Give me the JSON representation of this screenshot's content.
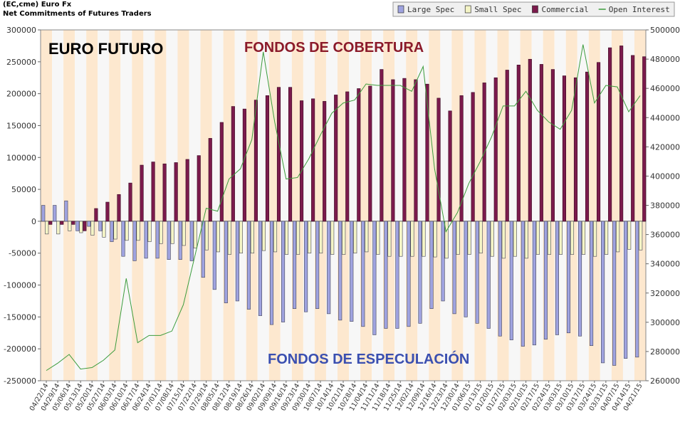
{
  "chart_data": {
    "type": "bar",
    "title": "(EC,cme) Euro Fx",
    "subtitle": "Net Commitments of Futures Traders",
    "annotations": [
      "EURO FUTURO",
      "FONDOS DE COBERTURA",
      "FONDOS DE ESPECULACIÓN"
    ],
    "categories": [
      "04/22/14",
      "04/29/14",
      "05/06/14",
      "05/13/14",
      "05/20/14",
      "05/27/14",
      "06/03/14",
      "06/10/14",
      "06/17/14",
      "06/24/14",
      "07/01/14",
      "07/08/14",
      "07/15/14",
      "07/22/14",
      "07/29/14",
      "08/05/14",
      "08/12/14",
      "08/19/14",
      "08/26/14",
      "09/02/14",
      "09/09/14",
      "09/16/14",
      "09/23/14",
      "09/30/14",
      "10/07/14",
      "10/14/14",
      "10/21/14",
      "10/28/14",
      "11/04/14",
      "11/11/14",
      "11/18/14",
      "11/25/14",
      "12/02/14",
      "12/09/14",
      "12/16/14",
      "12/23/14",
      "12/30/14",
      "01/06/15",
      "01/13/15",
      "01/20/15",
      "01/27/15",
      "02/03/15",
      "02/10/15",
      "02/17/15",
      "02/24/15",
      "03/03/15",
      "03/10/15",
      "03/17/15",
      "03/24/15",
      "03/31/15",
      "04/07/15",
      "04/14/15",
      "04/21/15"
    ],
    "series": [
      {
        "name": "Large Spec",
        "color": "#9fa3e0",
        "values": [
          25000,
          25000,
          32000,
          -15000,
          -8000,
          -15000,
          -32000,
          -55000,
          -62000,
          -58000,
          -58000,
          -60000,
          -60000,
          -62000,
          -88000,
          -107000,
          -128000,
          -125000,
          -138000,
          -148000,
          -162000,
          -158000,
          -137000,
          -142000,
          -137000,
          -145000,
          -155000,
          -157000,
          -165000,
          -178000,
          -168000,
          -168000,
          -165000,
          -160000,
          -137000,
          -125000,
          -145000,
          -150000,
          -160000,
          -168000,
          -180000,
          -186000,
          -196000,
          -194000,
          -185000,
          -178000,
          -175000,
          -180000,
          -195000,
          -222000,
          -226000,
          -215000,
          -213000
        ]
      },
      {
        "name": "Small Spec",
        "color": "#f4f4c6",
        "values": [
          -20000,
          -20000,
          -15000,
          -18000,
          -22000,
          -25000,
          -28000,
          -30000,
          -30000,
          -32000,
          -35000,
          -35000,
          -38000,
          -42000,
          -45000,
          -48000,
          -52000,
          -50000,
          -50000,
          -46000,
          -48000,
          -52000,
          -52000,
          -50000,
          -50000,
          -52000,
          -52000,
          -50000,
          -48000,
          -52000,
          -55000,
          -55000,
          -55000,
          -55000,
          -56000,
          -58000,
          -52000,
          -52000,
          -50000,
          -55000,
          -58000,
          -55000,
          -58000,
          -52000,
          -52000,
          -52000,
          -52000,
          -52000,
          -55000,
          -52000,
          -48000,
          -44000,
          -45000
        ]
      },
      {
        "name": "Commercial",
        "color": "#7b1a4c",
        "values": [
          -5000,
          -5000,
          -5000,
          -15000,
          20000,
          30000,
          42000,
          60000,
          88000,
          93000,
          90000,
          92000,
          97000,
          103000,
          130000,
          155000,
          180000,
          176000,
          190000,
          197000,
          210000,
          210000,
          189000,
          192000,
          188000,
          198000,
          203000,
          208000,
          212000,
          238000,
          222000,
          224000,
          222000,
          215000,
          193000,
          173000,
          197000,
          202000,
          217000,
          225000,
          237000,
          245000,
          254000,
          246000,
          238000,
          228000,
          225000,
          234000,
          249000,
          272000,
          275000,
          260000,
          258000
        ]
      },
      {
        "name": "Open Interest",
        "color": "#3c9c3c",
        "type": "line",
        "axis": "y2",
        "values": [
          267000,
          272000,
          278000,
          268000,
          269000,
          274000,
          281000,
          330000,
          286000,
          291000,
          291000,
          294000,
          312000,
          345000,
          378000,
          376000,
          398000,
          405000,
          425000,
          485000,
          437000,
          398000,
          399000,
          412000,
          428000,
          443000,
          450000,
          452000,
          463000,
          462000,
          462000,
          462000,
          458000,
          475000,
          405000,
          362000,
          375000,
          395000,
          410000,
          427000,
          448000,
          448000,
          458000,
          445000,
          437000,
          432000,
          445000,
          490000,
          450000,
          462000,
          461000,
          444000,
          455000
        ]
      }
    ],
    "ylim": [
      -250000,
      300000
    ],
    "yticks": [
      -250000,
      -200000,
      -150000,
      -100000,
      -50000,
      0,
      50000,
      100000,
      150000,
      200000,
      250000,
      300000
    ],
    "y2lim": [
      260000,
      500000
    ],
    "y2ticks": [
      260000,
      280000,
      300000,
      320000,
      340000,
      360000,
      380000,
      400000,
      420000,
      440000,
      460000,
      480000,
      500000
    ]
  }
}
